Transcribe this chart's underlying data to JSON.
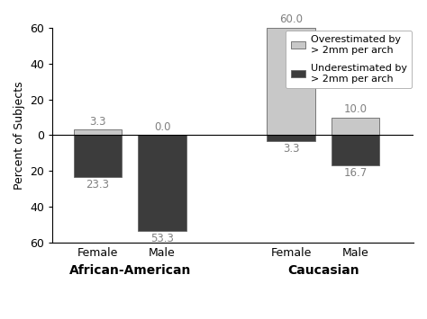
{
  "groups": [
    "African-American Female",
    "African-American Male",
    "Caucasian Female",
    "Caucasian Male"
  ],
  "x_positions": [
    1,
    2,
    4,
    5
  ],
  "over_values": [
    3.3,
    0.0,
    60.0,
    10.0
  ],
  "under_values": [
    -23.3,
    -53.3,
    -3.3,
    -16.7
  ],
  "over_color": "#c8c8c8",
  "under_color": "#3c3c3c",
  "bar_width": 0.75,
  "ylim": [
    -60,
    60
  ],
  "yticks": [
    -60,
    -40,
    -20,
    0,
    20,
    40,
    60
  ],
  "yticklabels": [
    "60",
    "40",
    "20",
    "0",
    "20",
    "40",
    "60"
  ],
  "ylabel": "Percent of Subjects",
  "x_group_labels": [
    "Female",
    "Male",
    "Female",
    "Male"
  ],
  "x_group_titles": [
    {
      "label": "African-American",
      "x": 1.5
    },
    {
      "label": "Caucasian",
      "x": 4.5
    }
  ],
  "legend_labels": [
    "Overestimated by\n> 2mm per arch",
    "Underestimated by\n> 2mm per arch"
  ],
  "legend_colors": [
    "#c8c8c8",
    "#3c3c3c"
  ],
  "background_color": "#ffffff",
  "font_color": "#808080",
  "tick_fontsize": 9,
  "label_fontsize": 9,
  "group_title_fontsize": 10,
  "legend_fontsize": 8,
  "value_fontsize": 8.5
}
